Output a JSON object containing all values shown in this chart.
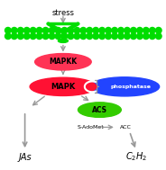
{
  "bg_color": "#ffffff",
  "membrane_color": "#00dd00",
  "receptor_color": "#00dd00",
  "mapkk_color": "#ff3355",
  "mapk_color": "#ff1133",
  "phosphatase_color": "#2244ff",
  "acs_color": "#33cc00",
  "arrow_color": "#999999",
  "text_color": "#000000",
  "stress_text": "stress",
  "mapkk_text": "MAPKK",
  "mapk_text": "MAPK",
  "phosphatase_text": "phosphatase",
  "acs_text": "ACS",
  "sadome_text": "S-AdoMet",
  "acc_text": "ACC",
  "jas_text": "JAs",
  "figsize": [
    1.84,
    1.89
  ],
  "dpi": 100
}
